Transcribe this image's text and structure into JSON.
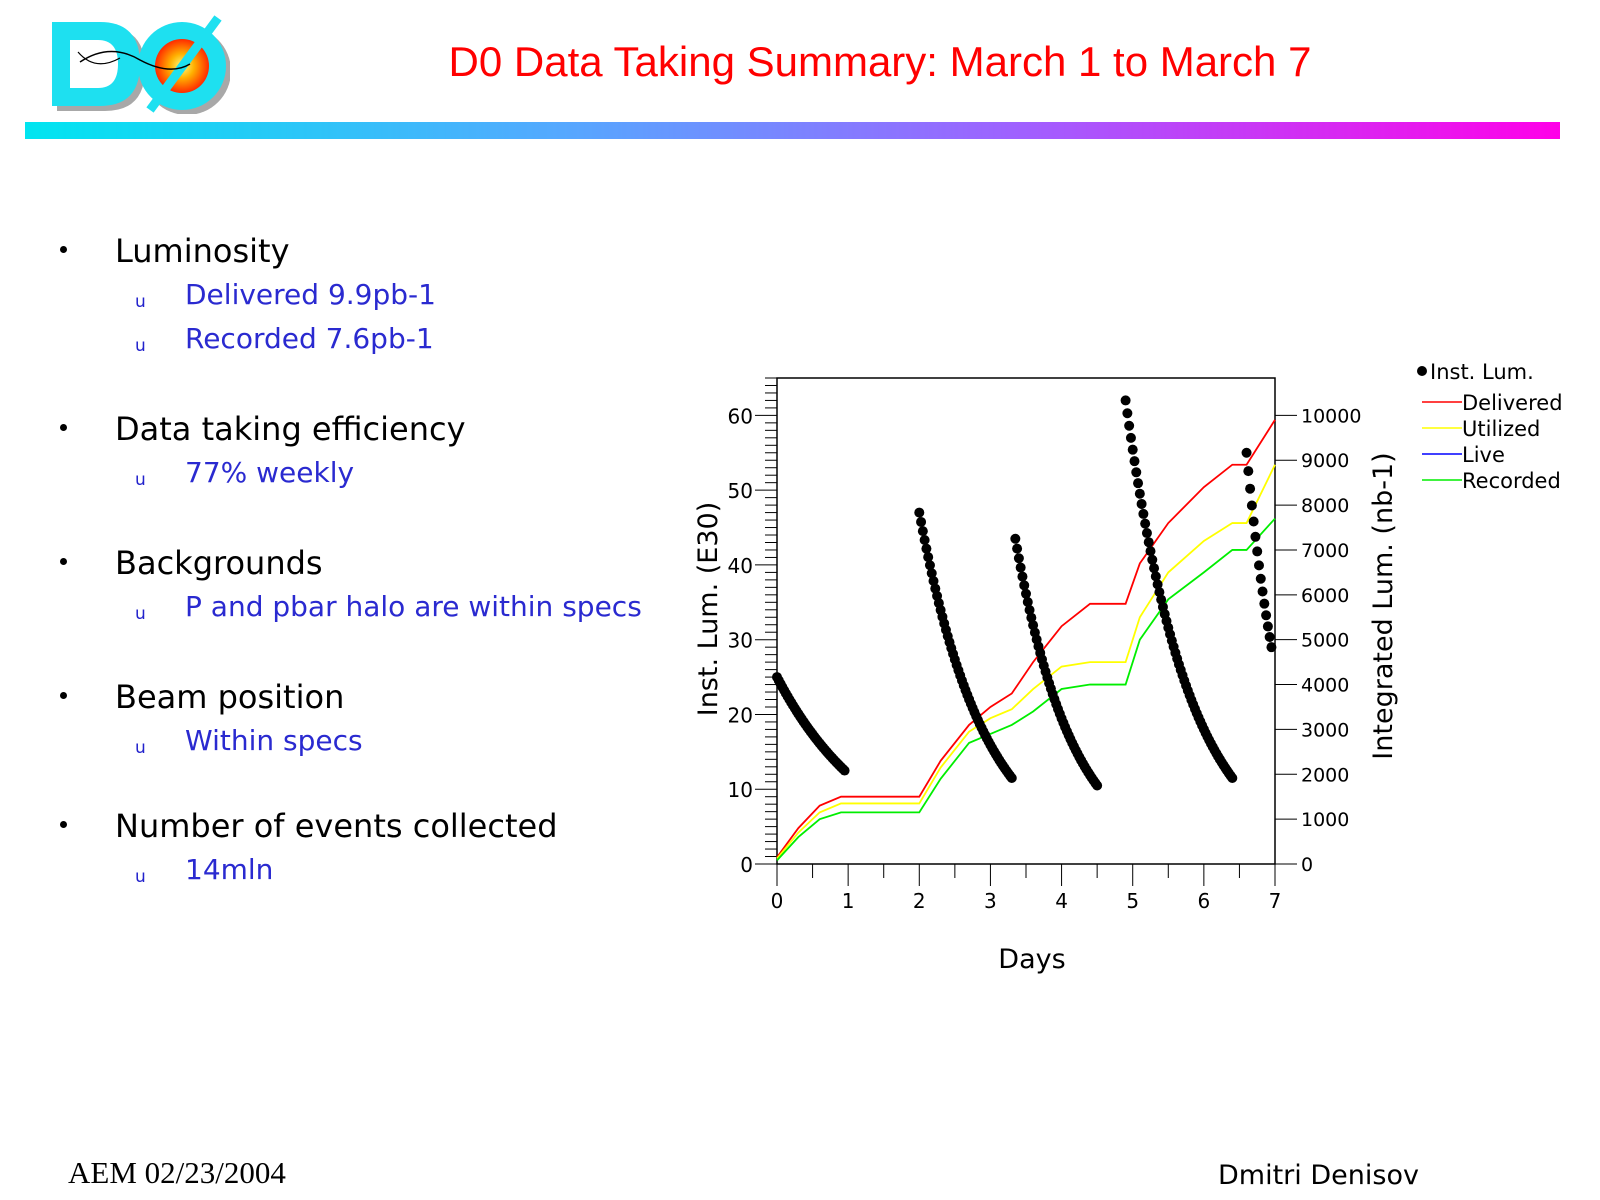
{
  "header": {
    "title": "D0 Data Taking Summary: March 1 to March 7",
    "logo_label": "DØ"
  },
  "colors": {
    "title": "#ff0000",
    "bullet_text": "#000000",
    "sub_text": "#2a2ad0",
    "rule_gradient": [
      "#00e5f0",
      "#a060ff",
      "#ff00e8"
    ]
  },
  "bullets": [
    {
      "label": "Luminosity",
      "subs": [
        "Delivered 9.9pb-1",
        "Recorded 7.6pb-1"
      ]
    },
    {
      "label": "Data taking efficiency",
      "subs": [
        "77% weekly"
      ]
    },
    {
      "label": "Backgrounds",
      "subs": [
        "P and pbar halo are within specs"
      ]
    },
    {
      "label": "Beam position",
      "subs": [
        "Within specs"
      ]
    },
    {
      "label": "Number of events collected",
      "subs": [
        "14mln"
      ]
    }
  ],
  "sub_marker": "u",
  "footer": {
    "left": "AEM 02/23/2004",
    "right": "Dmitri Denisov"
  },
  "chart_data": {
    "type": "line",
    "title": "",
    "xlabel": "Days",
    "ylabel": "Inst. Lum. (E30)",
    "y2label": "Integrated Lum. (nb-1)",
    "xlim": [
      0,
      7
    ],
    "ylim": [
      0,
      65
    ],
    "y2lim": [
      0,
      10833
    ],
    "xticks": [
      0,
      1,
      2,
      3,
      4,
      5,
      6,
      7
    ],
    "yticks": [
      0,
      10,
      20,
      30,
      40,
      50,
      60
    ],
    "y2ticks": [
      0,
      1000,
      2000,
      3000,
      4000,
      5000,
      6000,
      7000,
      8000,
      9000,
      10000
    ],
    "legend_position": "top-right outside",
    "grid": false,
    "scatter_series": {
      "name": "Inst. Lum.",
      "color": "#000000",
      "stores": [
        {
          "t_start": 0.0,
          "t_end": 0.95,
          "l_start": 25,
          "l_end": 12.5
        },
        {
          "t_start": 2.0,
          "t_end": 3.3,
          "l_start": 47,
          "l_end": 11.5
        },
        {
          "t_start": 3.35,
          "t_end": 4.5,
          "l_start": 43.5,
          "l_end": 10.5
        },
        {
          "t_start": 4.9,
          "t_end": 6.4,
          "l_start": 62,
          "l_end": 11.5
        },
        {
          "t_start": 6.6,
          "t_end": 6.95,
          "l_start": 55,
          "l_end": 29
        }
      ]
    },
    "series": [
      {
        "name": "Delivered",
        "color": "#ff0000",
        "x": [
          0,
          0.3,
          0.6,
          0.9,
          2.0,
          2.3,
          2.7,
          3.0,
          3.3,
          3.6,
          4.0,
          4.4,
          4.9,
          5.1,
          5.5,
          6.0,
          6.4,
          6.6,
          7.0
        ],
        "y": [
          150,
          800,
          1300,
          1500,
          1500,
          2300,
          3100,
          3500,
          3800,
          4500,
          5300,
          5800,
          5800,
          6700,
          7600,
          8400,
          8900,
          8900,
          9900
        ]
      },
      {
        "name": "Utilized",
        "color": "#ffff00",
        "x": [
          0,
          0.3,
          0.6,
          0.9,
          2.0,
          2.3,
          2.7,
          3.0,
          3.3,
          3.6,
          4.0,
          4.4,
          4.9,
          5.1,
          5.5,
          6.0,
          6.4,
          6.6,
          7.0
        ],
        "y": [
          120,
          700,
          1150,
          1350,
          1350,
          2150,
          2950,
          3250,
          3450,
          3900,
          4400,
          4500,
          4500,
          5500,
          6500,
          7200,
          7600,
          7600,
          8900
        ]
      },
      {
        "name": "Live",
        "color": "#0000ff",
        "x": [],
        "y": []
      },
      {
        "name": "Recorded",
        "color": "#00ee00",
        "x": [
          0,
          0.3,
          0.6,
          0.9,
          2.0,
          2.3,
          2.7,
          3.0,
          3.3,
          3.6,
          4.0,
          4.4,
          4.9,
          5.1,
          5.5,
          6.0,
          6.4,
          6.6,
          7.0
        ],
        "y": [
          80,
          600,
          1000,
          1150,
          1150,
          1900,
          2700,
          2900,
          3100,
          3400,
          3900,
          4000,
          4000,
          5000,
          5900,
          6500,
          7000,
          7000,
          7700
        ]
      }
    ]
  }
}
